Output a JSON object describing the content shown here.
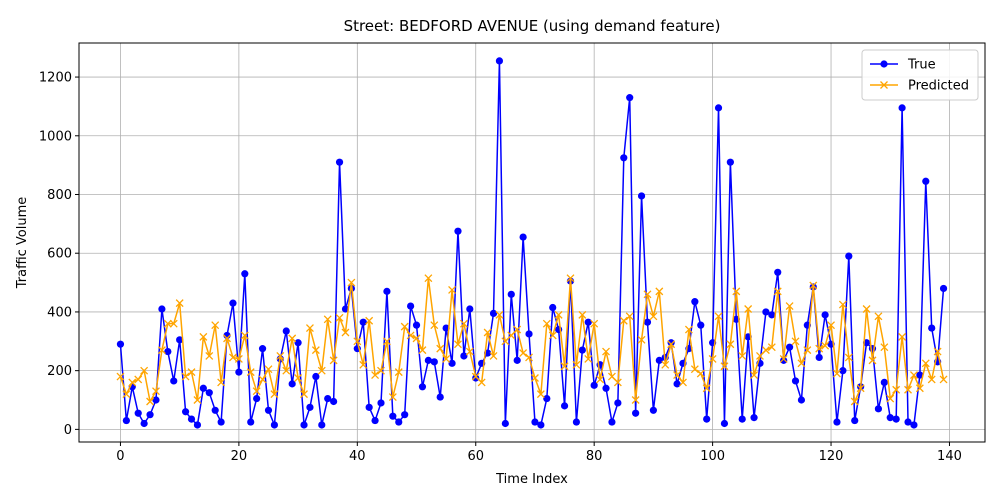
{
  "chart_data": {
    "type": "line",
    "title": "Street: BEDFORD AVENUE (using demand feature)",
    "xlabel": "Time Index",
    "ylabel": "Traffic Volume",
    "xlim": [
      -7,
      146
    ],
    "ylim": [
      -43,
      1316
    ],
    "xticks": [
      0,
      20,
      40,
      60,
      80,
      100,
      120,
      140
    ],
    "yticks": [
      0,
      200,
      400,
      600,
      800,
      1000,
      1200
    ],
    "grid": true,
    "legend_position": "top-right",
    "series": [
      {
        "name": "True",
        "color": "#0000ff",
        "marker": "circle",
        "values": [
          290,
          30,
          145,
          55,
          20,
          50,
          100,
          410,
          265,
          165,
          305,
          60,
          35,
          15,
          140,
          125,
          65,
          25,
          320,
          430,
          195,
          530,
          25,
          105,
          275,
          65,
          15,
          240,
          335,
          155,
          295,
          15,
          75,
          180,
          15,
          105,
          95,
          910,
          410,
          480,
          275,
          365,
          75,
          30,
          90,
          470,
          45,
          25,
          50,
          420,
          355,
          145,
          235,
          230,
          110,
          345,
          225,
          675,
          250,
          410,
          175,
          225,
          260,
          395,
          1255,
          20,
          460,
          235,
          655,
          325,
          25,
          15,
          105,
          415,
          340,
          80,
          505,
          25,
          270,
          365,
          150,
          220,
          140,
          25,
          90,
          925,
          1130,
          55,
          795,
          365,
          65,
          235,
          245,
          295,
          155,
          225,
          275,
          435,
          355,
          35,
          295,
          1095,
          20,
          910,
          375,
          35,
          315,
          40,
          225,
          400,
          390,
          535,
          235,
          280,
          165,
          100,
          355,
          485,
          245,
          390,
          290,
          25,
          200,
          590,
          30,
          145,
          295,
          275,
          70,
          160,
          40,
          35,
          1095,
          25,
          15,
          185,
          845,
          345,
          230,
          480
        ]
      },
      {
        "name": "Predicted",
        "color": "#ffa500",
        "marker": "x",
        "values": [
          180,
          120,
          160,
          170,
          200,
          95,
          130,
          270,
          360,
          360,
          430,
          180,
          195,
          100,
          315,
          250,
          355,
          160,
          310,
          245,
          240,
          320,
          195,
          130,
          170,
          205,
          120,
          250,
          200,
          310,
          175,
          120,
          345,
          270,
          200,
          375,
          235,
          380,
          330,
          500,
          300,
          220,
          370,
          185,
          200,
          300,
          110,
          195,
          350,
          320,
          310,
          270,
          515,
          355,
          275,
          240,
          475,
          290,
          360,
          265,
          180,
          160,
          330,
          250,
          390,
          300,
          320,
          340,
          260,
          245,
          175,
          120,
          360,
          320,
          390,
          215,
          515,
          220,
          390,
          240,
          360,
          170,
          265,
          180,
          160,
          370,
          385,
          100,
          305,
          460,
          385,
          470,
          220,
          290,
          185,
          160,
          340,
          205,
          190,
          140,
          240,
          385,
          215,
          290,
          470,
          250,
          410,
          185,
          250,
          270,
          280,
          470,
          240,
          420,
          300,
          225,
          270,
          490,
          275,
          285,
          355,
          190,
          425,
          245,
          95,
          140,
          410,
          235,
          385,
          280,
          105,
          135,
          315,
          135,
          185,
          140,
          225,
          170,
          265,
          170
        ]
      }
    ]
  }
}
